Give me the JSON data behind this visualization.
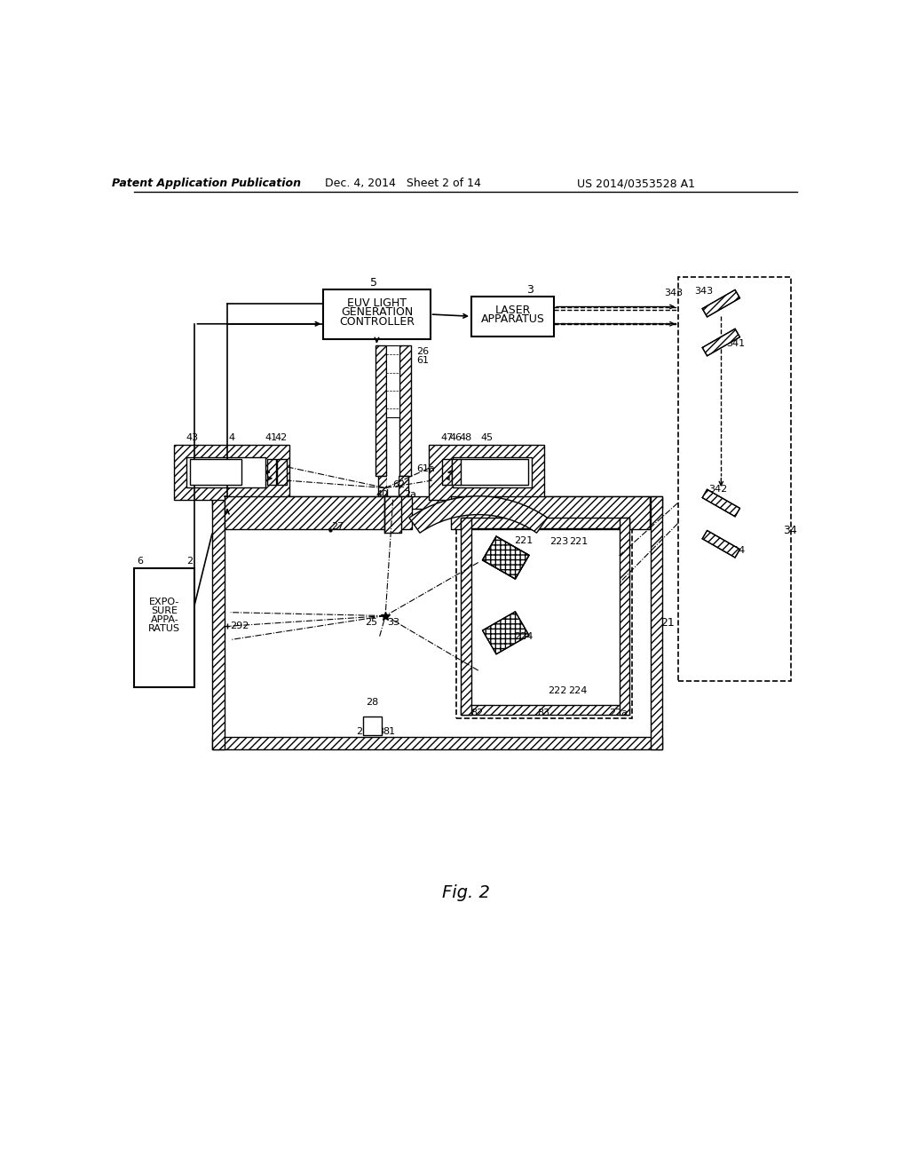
{
  "bg_color": "#ffffff",
  "header_left": "Patent Application Publication",
  "header_mid": "Dec. 4, 2014   Sheet 2 of 14",
  "header_right": "US 2014/0353528 A1",
  "fig_label": "Fig. 2"
}
